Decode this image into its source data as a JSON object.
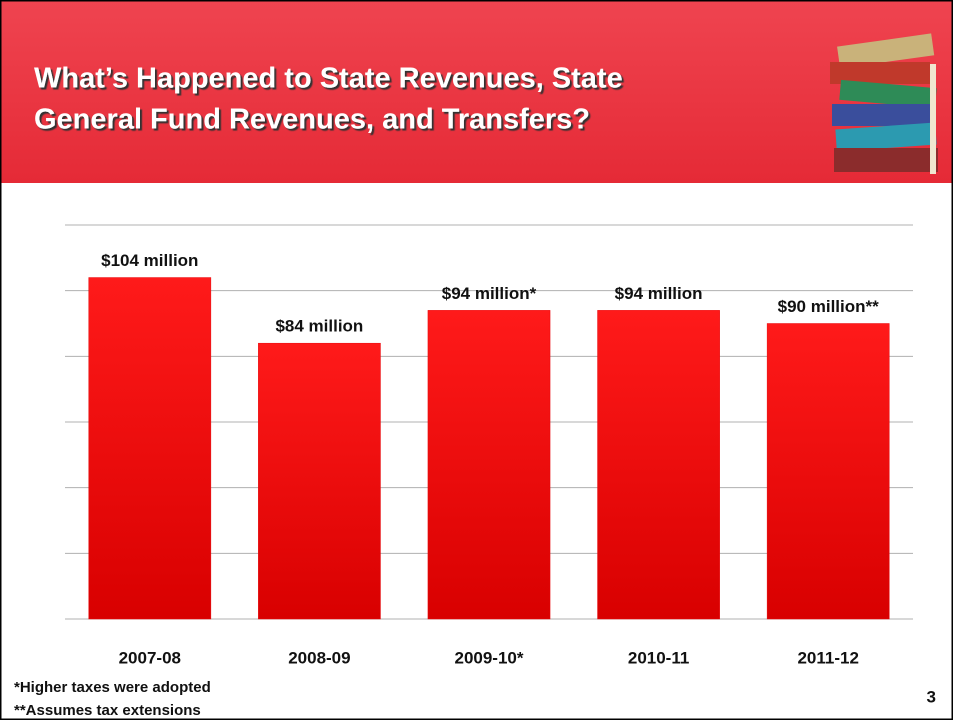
{
  "chart_data": {
    "type": "bar",
    "title_lines": [
      "What’s Happened to State Revenues, State",
      "General Fund Revenues, and Transfers?"
    ],
    "categories": [
      "2007-08",
      "2008-09",
      "2009-10*",
      "2010-11",
      "2011-12"
    ],
    "values": [
      104,
      84,
      94,
      94,
      90
    ],
    "value_labels": [
      "$104 million",
      "$84 million",
      "$94 million*",
      "$94 million",
      "$90 million**"
    ],
    "color": "#e8080c",
    "ylim": [
      0,
      120
    ],
    "yticks": [
      0,
      20,
      40,
      60,
      80,
      100,
      120
    ],
    "grid": true,
    "footnotes": [
      "*Higher taxes were adopted",
      "**Assumes tax extensions"
    ],
    "page_number": "3"
  }
}
